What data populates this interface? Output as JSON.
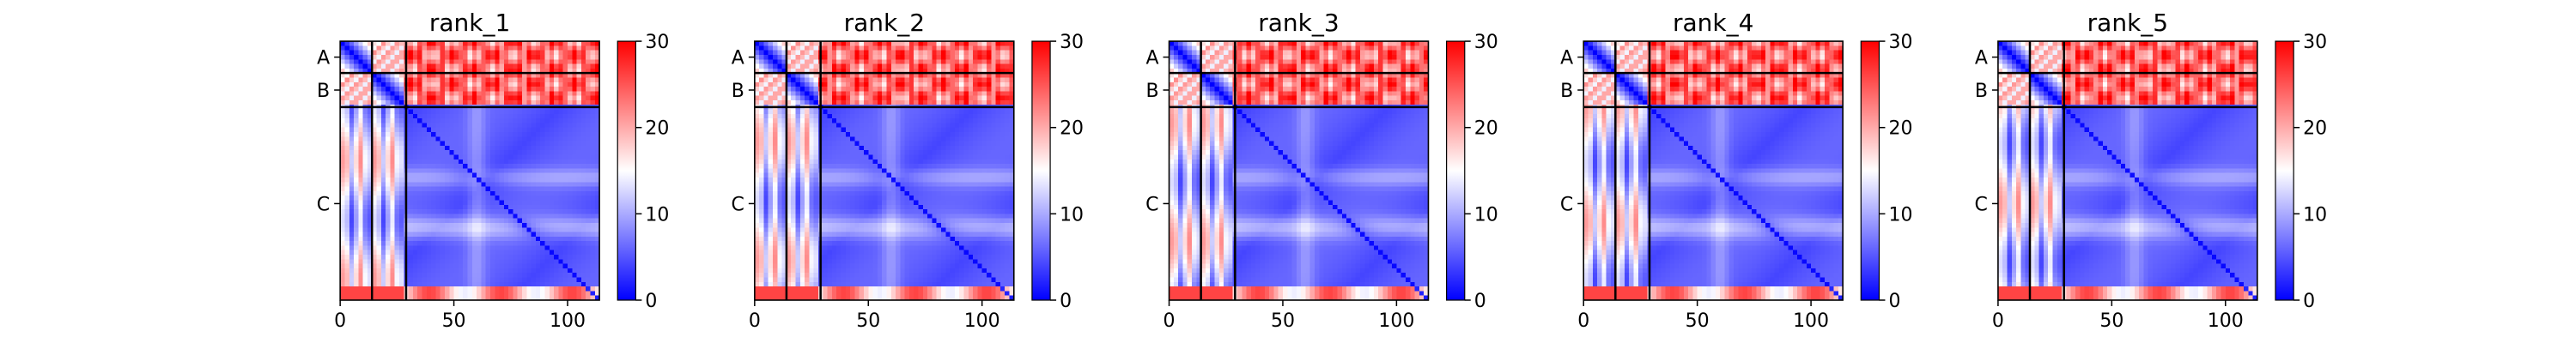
{
  "chart_data": [
    {
      "type": "heatmap",
      "title": "rank_1",
      "chain_labels": [
        "A",
        "B",
        "C"
      ],
      "chain_boundaries": [
        0,
        14,
        29,
        114
      ],
      "xticks": [
        0,
        50,
        100
      ],
      "xlim": [
        0,
        114
      ],
      "colorbar": {
        "ticks": [
          0,
          10,
          20,
          30
        ],
        "range": [
          0,
          30
        ],
        "colors": [
          "#0000ff",
          "#ffffff",
          "#ff0000"
        ]
      }
    },
    {
      "type": "heatmap",
      "title": "rank_2",
      "chain_labels": [
        "A",
        "B",
        "C"
      ],
      "chain_boundaries": [
        0,
        14,
        29,
        114
      ],
      "xticks": [
        0,
        50,
        100
      ],
      "xlim": [
        0,
        114
      ],
      "colorbar": {
        "ticks": [
          0,
          10,
          20,
          30
        ],
        "range": [
          0,
          30
        ],
        "colors": [
          "#0000ff",
          "#ffffff",
          "#ff0000"
        ]
      }
    },
    {
      "type": "heatmap",
      "title": "rank_3",
      "chain_labels": [
        "A",
        "B",
        "C"
      ],
      "chain_boundaries": [
        0,
        14,
        29,
        114
      ],
      "xticks": [
        0,
        50,
        100
      ],
      "xlim": [
        0,
        114
      ],
      "colorbar": {
        "ticks": [
          0,
          10,
          20,
          30
        ],
        "range": [
          0,
          30
        ],
        "colors": [
          "#0000ff",
          "#ffffff",
          "#ff0000"
        ]
      }
    },
    {
      "type": "heatmap",
      "title": "rank_4",
      "chain_labels": [
        "A",
        "B",
        "C"
      ],
      "chain_boundaries": [
        0,
        14,
        29,
        114
      ],
      "xticks": [
        0,
        50,
        100
      ],
      "xlim": [
        0,
        114
      ],
      "colorbar": {
        "ticks": [
          0,
          10,
          20,
          30
        ],
        "range": [
          0,
          30
        ],
        "colors": [
          "#0000ff",
          "#ffffff",
          "#ff0000"
        ]
      }
    },
    {
      "type": "heatmap",
      "title": "rank_5",
      "chain_labels": [
        "A",
        "B",
        "C"
      ],
      "chain_boundaries": [
        0,
        14,
        29,
        114
      ],
      "xticks": [
        0,
        50,
        100
      ],
      "xlim": [
        0,
        114
      ],
      "colorbar": {
        "ticks": [
          0,
          10,
          20,
          30
        ],
        "range": [
          0,
          30
        ],
        "colors": [
          "#0000ff",
          "#ffffff",
          "#ff0000"
        ]
      }
    }
  ]
}
